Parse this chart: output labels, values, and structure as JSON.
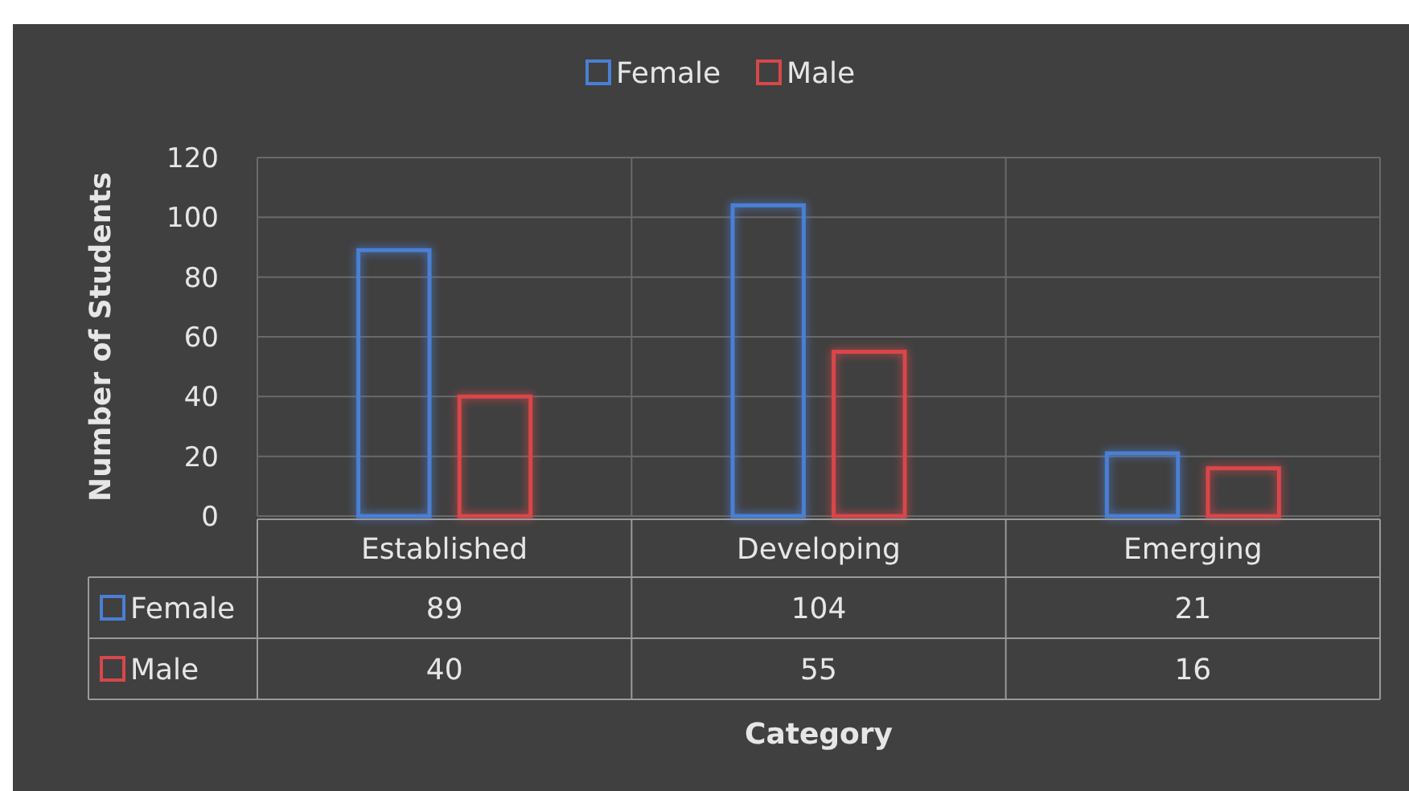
{
  "chart_data": {
    "type": "bar",
    "annotations": [
      "Category"
    ],
    "ylabel": "Number of Students",
    "categories": [
      "Established",
      "Developing",
      "Emerging"
    ],
    "series": [
      {
        "name": "Female",
        "color": "#4a7fd4",
        "values": [
          89,
          104,
          21
        ]
      },
      {
        "name": "Male",
        "color": "#d8474a",
        "values": [
          40,
          55,
          16
        ]
      }
    ],
    "ylim": [
      0,
      120
    ],
    "yticks": [
      0,
      20,
      40,
      60,
      80,
      100,
      120
    ],
    "grid": true,
    "legend": "top",
    "data_labels": true
  }
}
